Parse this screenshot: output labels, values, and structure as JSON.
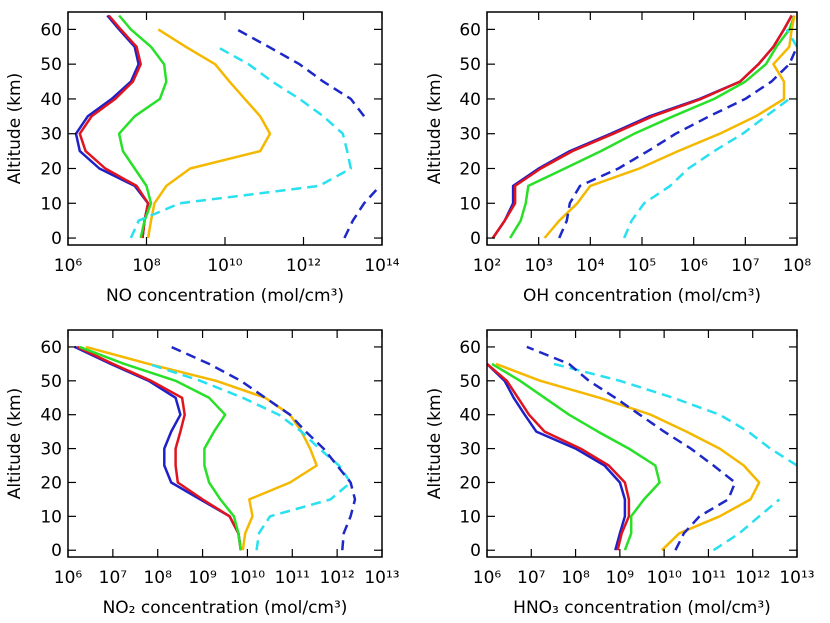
{
  "chart_data": [
    {
      "type": "line",
      "xscale": "log",
      "xlabel": "NO concentration (mol/cm³)",
      "ylabel": "Altitude (km)",
      "xlim": [
        1000000.0,
        100000000000000.0
      ],
      "ylim": [
        -2,
        65
      ],
      "yticks": [
        0,
        10,
        20,
        30,
        40,
        50,
        60
      ],
      "xticks": [
        {
          "value": 1000000.0,
          "label": "10⁶"
        },
        {
          "value": 100000000.0,
          "label": "10⁸"
        },
        {
          "value": 10000000000.0,
          "label": "10¹⁰"
        },
        {
          "value": 1000000000000.0,
          "label": "10¹²"
        },
        {
          "value": 100000000000000.0,
          "label": "10¹⁴"
        }
      ],
      "y": [
        0,
        5,
        10,
        15,
        20,
        25,
        30,
        35,
        40,
        45,
        50,
        55,
        60,
        64
      ],
      "series": [
        {
          "color": "#2020c8",
          "dashed": false,
          "values": [
            79000000.0,
            89000000.0,
            110000000.0,
            50000000.0,
            6300000.0,
            2000000.0,
            1600000.0,
            3200000.0,
            13000000.0,
            40000000.0,
            63000000.0,
            50000000.0,
            20000000.0,
            10000000.0
          ]
        },
        {
          "color": "#e0141e",
          "dashed": false,
          "values": [
            79000000.0,
            89000000.0,
            110000000.0,
            56000000.0,
            8900000.0,
            2800000.0,
            2000000.0,
            4000000.0,
            16000000.0,
            45000000.0,
            71000000.0,
            56000000.0,
            22000000.0,
            11000000.0
          ]
        },
        {
          "color": "#28e028",
          "dashed": false,
          "values": [
            71000000.0,
            89000000.0,
            130000000.0,
            100000000.0,
            50000000.0,
            25000000.0,
            20000000.0,
            50000000.0,
            220000000.0,
            320000000.0,
            280000000.0,
            130000000.0,
            40000000.0,
            20000000.0
          ]
        },
        {
          "color": "#f5b800",
          "dashed": false,
          "values": [
            110000000.0,
            130000000.0,
            160000000.0,
            320000000.0,
            1300000000.0,
            79000000000.0,
            140000000000.0,
            79000000000.0,
            32000000000.0,
            13000000000.0,
            5600000000.0,
            1000000000.0,
            200000000.0,
            null
          ]
        },
        {
          "color": "#28e0f0",
          "dashed": true,
          "values": [
            40000000.0,
            63000000.0,
            710000000.0,
            2500000000000.0,
            16000000000000.0,
            13000000000000.0,
            10000000000000.0,
            3200000000000.0,
            790000000000.0,
            160000000000.0,
            40000000000.0,
            6300000000.0,
            null,
            null
          ]
        },
        {
          "color": "#1e28c8",
          "dashed": true,
          "values": [
            11000000000000.0,
            18000000000000.0,
            35000000000000.0,
            89000000000000.0,
            null,
            null,
            null,
            35000000000000.0,
            16000000000000.0,
            3200000000000.0,
            790000000000.0,
            130000000000.0,
            20000000000.0,
            null
          ]
        }
      ]
    },
    {
      "type": "line",
      "xscale": "log",
      "xlabel": "OH concentration (mol/cm³)",
      "ylabel": "Altitude (km)",
      "xlim": [
        100.0,
        100000000.0
      ],
      "ylim": [
        -2,
        65
      ],
      "yticks": [
        0,
        10,
        20,
        30,
        40,
        50,
        60
      ],
      "xticks": [
        {
          "value": 100.0,
          "label": "10²"
        },
        {
          "value": 1000.0,
          "label": "10³"
        },
        {
          "value": 10000.0,
          "label": "10⁴"
        },
        {
          "value": 100000.0,
          "label": "10⁵"
        },
        {
          "value": 1000000.0,
          "label": "10⁶"
        },
        {
          "value": 10000000.0,
          "label": "10⁷"
        },
        {
          "value": 100000000.0,
          "label": "10⁸"
        }
      ],
      "y": [
        0,
        5,
        10,
        15,
        20,
        25,
        30,
        35,
        40,
        45,
        50,
        55,
        60,
        64
      ],
      "series": [
        {
          "color": "#2020c8",
          "dashed": false,
          "values": [
            130.0,
            220.0,
            320.0,
            320.0,
            1000.0,
            4000.0,
            25000.0,
            140000.0,
            1300000.0,
            7900000.0,
            18000000.0,
            35000000.0,
            56000000.0,
            79000000.0
          ]
        },
        {
          "color": "#e0141e",
          "dashed": false,
          "values": [
            130.0,
            220.0,
            350.0,
            350.0,
            1100.0,
            4500.0,
            28000.0,
            160000.0,
            1400000.0,
            7900000.0,
            18000000.0,
            35000000.0,
            56000000.0,
            79000000.0
          ]
        },
        {
          "color": "#28e028",
          "dashed": false,
          "values": [
            280.0,
            450.0,
            560.0,
            630.0,
            3200.0,
            16000.0,
            71000.0,
            400000.0,
            2500000.0,
            10000000.0,
            25000000.0,
            40000000.0,
            71000000.0,
            89000000.0
          ]
        },
        {
          "color": "#f5b800",
          "dashed": false,
          "values": [
            1300.0,
            2500.0,
            5600.0,
            10000.0,
            89000.0,
            500000.0,
            3200000.0,
            16000000.0,
            56000000.0,
            56000000.0,
            35000000.0,
            71000000.0,
            79000000.0,
            89000000.0
          ]
        },
        {
          "color": "#28e0f0",
          "dashed": true,
          "values": [
            45000.0,
            63000.0,
            110000.0,
            350000.0,
            790000.0,
            2500000.0,
            8900000.0,
            25000000.0,
            71000000.0,
            null,
            null,
            100000000.0,
            63000000.0,
            null
          ]
        },
        {
          "color": "#1e28c8",
          "dashed": true,
          "values": [
            2500.0,
            3500.0,
            4000.0,
            6300.0,
            35000.0,
            130000.0,
            450000.0,
            2000000.0,
            10000000.0,
            32000000.0,
            71000000.0,
            100000000.0,
            null,
            null
          ]
        }
      ]
    },
    {
      "type": "line",
      "xscale": "log",
      "xlabel": "NO₂ concentration (mol/cm³)",
      "ylabel": "Altitude (km)",
      "xlim": [
        1000000.0,
        10000000000000.0
      ],
      "ylim": [
        -2,
        65
      ],
      "yticks": [
        0,
        10,
        20,
        30,
        40,
        50,
        60
      ],
      "xticks": [
        {
          "value": 1000000.0,
          "label": "10⁶"
        },
        {
          "value": 10000000.0,
          "label": "10⁷"
        },
        {
          "value": 100000000.0,
          "label": "10⁸"
        },
        {
          "value": 1000000000.0,
          "label": "10⁹"
        },
        {
          "value": 10000000000.0,
          "label": "10¹⁰"
        },
        {
          "value": 100000000000.0,
          "label": "10¹¹"
        },
        {
          "value": 1000000000000.0,
          "label": "10¹²"
        },
        {
          "value": 10000000000000.0,
          "label": "10¹³"
        }
      ],
      "y": [
        0,
        5,
        10,
        15,
        20,
        25,
        30,
        35,
        40,
        45,
        50,
        55,
        60,
        64
      ],
      "series": [
        {
          "color": "#2020c8",
          "dashed": false,
          "values": [
            7100000000.0,
            6300000000.0,
            4000000000.0,
            890000000.0,
            200000000.0,
            140000000.0,
            140000000.0,
            200000000.0,
            320000000.0,
            250000000.0,
            63000000.0,
            8900000.0,
            1400000.0,
            null
          ]
        },
        {
          "color": "#e0141e",
          "dashed": false,
          "values": [
            7100000000.0,
            6300000000.0,
            4000000000.0,
            1000000000.0,
            280000000.0,
            250000000.0,
            250000000.0,
            320000000.0,
            400000000.0,
            350000000.0,
            71000000.0,
            10000000.0,
            1600000.0,
            null
          ]
        },
        {
          "color": "#28e028",
          "dashed": false,
          "values": [
            7100000000.0,
            6300000000.0,
            5000000000.0,
            2500000000.0,
            1400000000.0,
            1100000000.0,
            1100000000.0,
            1800000000.0,
            3200000000.0,
            1400000000.0,
            250000000.0,
            18000000.0,
            1800000.0,
            null
          ]
        },
        {
          "color": "#f5b800",
          "dashed": false,
          "values": [
            7900000000.0,
            8900000000.0,
            13000000000.0,
            11000000000.0,
            89000000000.0,
            350000000000.0,
            250000000000.0,
            160000000000.0,
            89000000000.0,
            25000000000.0,
            2000000000.0,
            63000000.0,
            2500000.0,
            null
          ]
        },
        {
          "color": "#28e0f0",
          "dashed": true,
          "values": [
            16000000000.0,
            18000000000.0,
            32000000000.0,
            710000000000.0,
            2000000000000.0,
            1100000000000.0,
            400000000000.0,
            160000000000.0,
            50000000000.0,
            7900000000.0,
            890000000.0,
            63000000.0,
            null,
            null
          ]
        },
        {
          "color": "#1e28c8",
          "dashed": true,
          "values": [
            1300000000000.0,
            1400000000000.0,
            2000000000000.0,
            2500000000000.0,
            2000000000000.0,
            1000000000000.0,
            500000000000.0,
            200000000000.0,
            89000000000.0,
            25000000000.0,
            7100000000.0,
            1400000000.0,
            200000000.0,
            null
          ]
        }
      ]
    },
    {
      "type": "line",
      "xscale": "log",
      "xlabel": "HNO₃ concentration (mol/cm³)",
      "ylabel": "Altitude (km)",
      "xlim": [
        1000000.0,
        10000000000000.0
      ],
      "ylim": [
        -2,
        65
      ],
      "yticks": [
        0,
        10,
        20,
        30,
        40,
        50,
        60
      ],
      "xticks": [
        {
          "value": 1000000.0,
          "label": "10⁶"
        },
        {
          "value": 10000000.0,
          "label": "10⁷"
        },
        {
          "value": 100000000.0,
          "label": "10⁸"
        },
        {
          "value": 1000000000.0,
          "label": "10⁹"
        },
        {
          "value": 10000000000.0,
          "label": "10¹⁰"
        },
        {
          "value": 100000000000.0,
          "label": "10¹¹"
        },
        {
          "value": 1000000000000.0,
          "label": "10¹²"
        },
        {
          "value": 10000000000000.0,
          "label": "10¹³"
        }
      ],
      "y": [
        0,
        5,
        10,
        15,
        20,
        25,
        30,
        35,
        40,
        45,
        50,
        55,
        60,
        64
      ],
      "series": [
        {
          "color": "#2020c8",
          "dashed": false,
          "values": [
            790000000.0,
            1000000000.0,
            1300000000.0,
            1300000000.0,
            1000000000.0,
            450000000.0,
            100000000.0,
            13000000.0,
            7100000.0,
            4000000.0,
            2500000.0,
            1000000.0,
            null,
            null
          ]
        },
        {
          "color": "#e0141e",
          "dashed": false,
          "values": [
            890000000.0,
            1100000000.0,
            1600000000.0,
            1600000000.0,
            1300000000.0,
            560000000.0,
            130000000.0,
            20000000.0,
            8900000.0,
            5000000.0,
            2800000.0,
            1000000.0,
            null,
            null
          ]
        },
        {
          "color": "#28e028",
          "dashed": false,
          "values": [
            1300000000.0,
            1800000000.0,
            1800000000.0,
            3500000000.0,
            7900000000.0,
            6300000000.0,
            1600000000.0,
            320000000.0,
            71000000.0,
            20000000.0,
            5600000.0,
            1300000.0,
            null,
            null
          ]
        },
        {
          "color": "#f5b800",
          "dashed": false,
          "values": [
            8900000000.0,
            22000000000.0,
            180000000000.0,
            890000000000.0,
            1400000000000.0,
            630000000000.0,
            180000000000.0,
            32000000000.0,
            5000000000.0,
            350000000.0,
            16000000.0,
            1600000.0,
            null,
            null
          ]
        },
        {
          "color": "#28e0f0",
          "dashed": true,
          "values": [
            130000000000.0,
            500000000000.0,
            1400000000000.0,
            4000000000000.0,
            null,
            10000000000000.0,
            2500000000000.0,
            790000000000.0,
            180000000000.0,
            16000000000.0,
            1000000000.0,
            32000000.0,
            null,
            null
          ]
        },
        {
          "color": "#1e28c8",
          "dashed": true,
          "values": [
            18000000000.0,
            28000000000.0,
            63000000000.0,
            280000000000.0,
            400000000000.0,
            130000000000.0,
            40000000000.0,
            10000000000.0,
            2800000000.0,
            790000000.0,
            200000000.0,
            71000000.0,
            7900000.0,
            null
          ]
        }
      ]
    }
  ]
}
